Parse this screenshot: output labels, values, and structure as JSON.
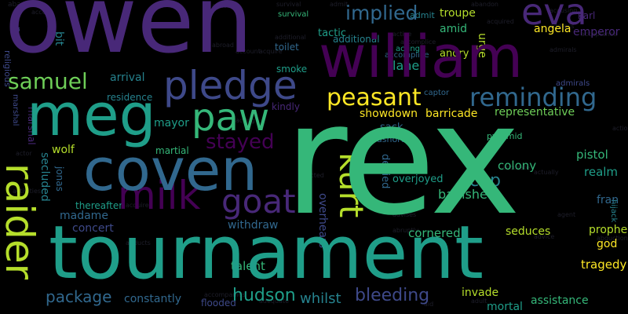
{
  "words": {
    "rex": "rex",
    "owen": "owen",
    "tournament": "tournament",
    "william": "william",
    "meg": "meg",
    "coven": "coven",
    "pledge": "pledge",
    "paw": "paw",
    "raider": "raider",
    "milk": "milk",
    "eva": "eva",
    "samuel": "samuel",
    "kurt": "kurt",
    "goat": "goat",
    "reminding": "reminding",
    "peasant": "peasant",
    "implied": "implied",
    "stayed": "stayed",
    "hudson": "hudson",
    "bleeding": "bleeding",
    "package": "package",
    "banished": "banished",
    "cup": "cup",
    "showdown": "showdown",
    "barricade": "barricade",
    "representative": "representative",
    "colony": "colony",
    "assistance": "assistance",
    "tragedy": "tragedy",
    "angela": "angela",
    "emperor": "emperor",
    "troupe": "troupe",
    "amid": "amid",
    "urge": "urge",
    "lane": "lane",
    "angry": "angry",
    "tactic": "tactic",
    "arrival": "arrival",
    "residence": "residence",
    "mayor": "mayor",
    "martial": "martial",
    "wolf": "wolf",
    "secluded": "secluded",
    "jonas": "jonas",
    "marshal": "marshal",
    "madame": "madame",
    "concert": "concert",
    "withdraw": "withdraw",
    "constantly": "constantly",
    "whilst": "whilst",
    "overhears": "overhears",
    "talent": "talent",
    "cornered": "cornered",
    "seduces": "seduces",
    "prophecy": "prophecy",
    "invade": "invade",
    "mortal": "mortal",
    "god": "god",
    "realm": "realm",
    "pistol": "pistol",
    "fran": "fran",
    "karl": "karl",
    "denied": "denied",
    "overjoyed": "overjoyed",
    "sack": "sack",
    "kindly": "kindly",
    "smoke": "smoke",
    "religious": "religious",
    "bit": "bit",
    "per": "per",
    "toilet": "toilet",
    "flooded": "flooded",
    "thereafter": "thereafter",
    "pyramid": "pyramid",
    "ashore": "ashore",
    "accomplice": "accomplice",
    "captor": "captor",
    "hijack": "hijack",
    "additional": "additional",
    "survival": "survival",
    "action": "action",
    "accept": "accept",
    "adequate": "adequate",
    "abandon": "abandon",
    "acquire": "acquire",
    "activist": "activist",
    "abroad": "abroad",
    "admit": "admit",
    "aid": "aid",
    "actor": "actor",
    "account": "account",
    "active": "active",
    "adult": "adult",
    "agent": "agent",
    "african": "african",
    "advice": "advice",
    "abruptly": "abruptly",
    "affected": "affected",
    "acceptance": "acceptance",
    "acting": "acting",
    "accompanies": "accompanies",
    "activities": "activities",
    "acquired": "acquired",
    "abducts": "abducts",
    "accusing": "accusing",
    "address": "address",
    "actually": "actually",
    "admirals": "admirals",
    "abduction": "abduction",
    "accurate": "accurate",
    "advises": "advises"
  }
}
